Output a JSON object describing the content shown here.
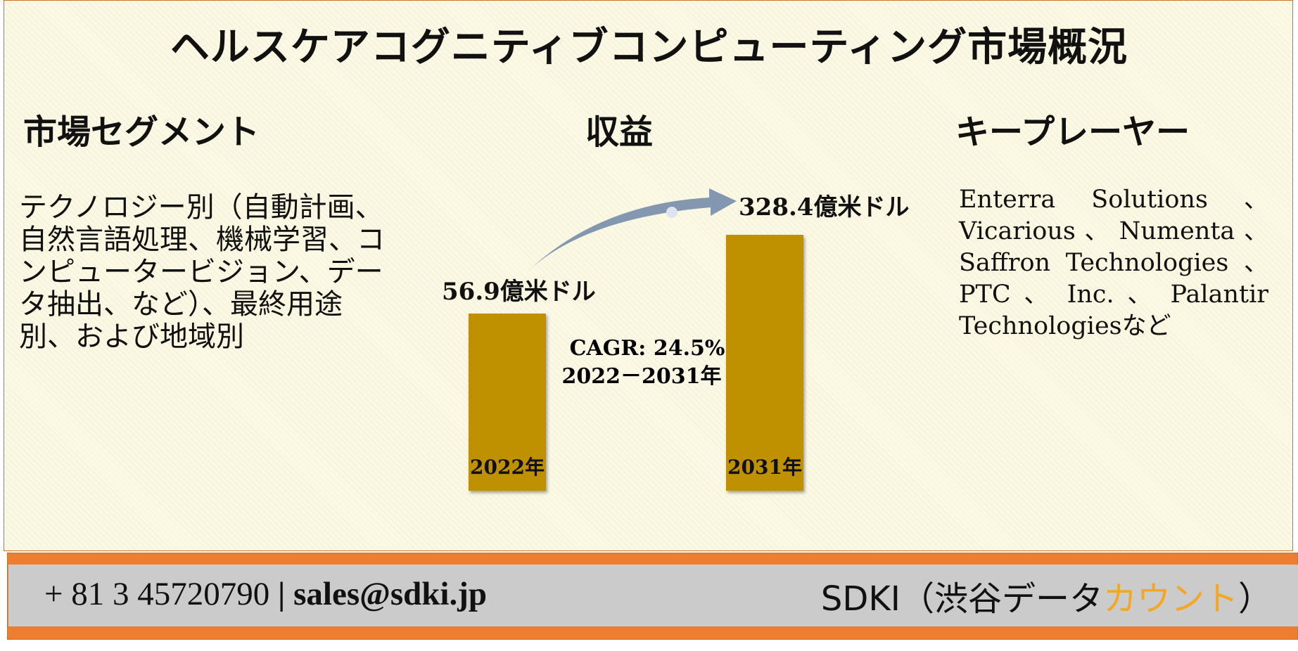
{
  "title": "ヘルスケアコグニティブコンピューティング市場概況",
  "sections": {
    "segments": {
      "heading": "市場セグメント",
      "text": "テクノロジー別（自動計画、自然言語処理、機械学習、コンピュータービジョン、データ抽出、など）、最終用途別、および地域別"
    },
    "revenue": {
      "heading": "収益"
    },
    "key_players": {
      "heading": "キープレーヤー",
      "text": "Enterra Solutions 、 Vicarious 、 Numenta 、 Saffron Technologies 、 PTC 、 Inc. 、 Palantir Technologiesなど"
    }
  },
  "chart_data": {
    "type": "bar",
    "categories": [
      "2022年",
      "2031年"
    ],
    "values": [
      56.9,
      328.4
    ],
    "value_labels": [
      "56.9億米ドル",
      "328.4億米ドル"
    ],
    "unit": "億米ドル",
    "annotation_line1": "CAGR: 24.5%",
    "annotation_line2": "2022－2031年",
    "colors": {
      "bar": "#bf9000",
      "arrow": "#8497b0"
    }
  },
  "footer": {
    "phone": "+ 81 3 45720790",
    "separator": "|",
    "email": "sales@sdki.jp",
    "brand_prefix": "SDKI（渋谷データ",
    "brand_accent": "カウント",
    "brand_suffix": "）"
  },
  "colors": {
    "footer_orange": "#ed7d31",
    "footer_gray": "#cbcbcb",
    "brand_accent": "#f5a623"
  }
}
